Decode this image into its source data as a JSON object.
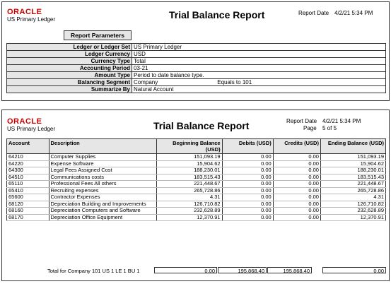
{
  "brand": "ORACLE",
  "ledger": "US Primary Ledger",
  "report_title": "Trial Balance Report",
  "page1": {
    "report_date_label": "Report Date",
    "report_date": "4/2/21 5:34 PM",
    "parameters_title": "Report Parameters",
    "parameters": [
      {
        "label": "Ledger or Ledger Set",
        "value": "US Primary Ledger",
        "extra": ""
      },
      {
        "label": "Ledger Currency",
        "value": "USD",
        "extra": ""
      },
      {
        "label": "Currency Type",
        "value": "Total",
        "extra": ""
      },
      {
        "label": "Accounting Period",
        "value": "03-21",
        "extra": ""
      },
      {
        "label": "Amount Type",
        "value": "Period to date balance type.",
        "extra": ""
      },
      {
        "label": "Balancing Segment",
        "value": "Company",
        "extra": "Equals to 101"
      },
      {
        "label": "Summarize By",
        "value": "Natural Account",
        "extra": ""
      }
    ]
  },
  "page2": {
    "report_date_label": "Report Date",
    "report_date": "4/2/21 5:34 PM",
    "page_label": "Page",
    "page_value": "5 of 5",
    "columns": {
      "account": "Account",
      "description": "Description",
      "beginning": "Beginning Balance (USD)",
      "debits": "Debits (USD)",
      "credits": "Credits (USD)",
      "ending": "Ending Balance (USD)"
    },
    "rows": [
      {
        "account": "64210",
        "description": "Computer Supplies",
        "beginning": "151,093.19",
        "debits": "0.00",
        "credits": "0.00",
        "ending": "151,093.19"
      },
      {
        "account": "64220",
        "description": "Expense Software",
        "beginning": "15,904.62",
        "debits": "0.00",
        "credits": "0.00",
        "ending": "15,904.62"
      },
      {
        "account": "64300",
        "description": "Legal Fees Assigned Cost",
        "beginning": "188,230.01",
        "debits": "0.00",
        "credits": "0.00",
        "ending": "188,230.01"
      },
      {
        "account": "64510",
        "description": "Communications costs",
        "beginning": "183,515.43",
        "debits": "0.00",
        "credits": "0.00",
        "ending": "183,515.43"
      },
      {
        "account": "65110",
        "description": "Professional Fees   All others",
        "beginning": "221,448.67",
        "debits": "0.00",
        "credits": "0.00",
        "ending": "221,448.67"
      },
      {
        "account": "65410",
        "description": "Recruiting expenses",
        "beginning": "265,728.86",
        "debits": "0.00",
        "credits": "0.00",
        "ending": "265,728.86"
      },
      {
        "account": "65600",
        "description": "Contractor Expenses",
        "beginning": "4.31",
        "debits": "0.00",
        "credits": "0.00",
        "ending": "4.31"
      },
      {
        "account": "68120",
        "description": "Depreciation Building and Improvements",
        "beginning": "126,710.82",
        "debits": "0.00",
        "credits": "0.00",
        "ending": "126,710.82"
      },
      {
        "account": "68160",
        "description": "Depreciation Computers and Software",
        "beginning": "232,628.89",
        "debits": "0.00",
        "credits": "0.00",
        "ending": "232,628.89"
      },
      {
        "account": "68170",
        "description": "Depreciation Office Equipment",
        "beginning": "12,370.91",
        "debits": "0.00",
        "credits": "0.00",
        "ending": "12,370.91"
      }
    ],
    "total": {
      "label": "Total for Company 101 US 1 LE 1 BU 1",
      "beginning": "0.00",
      "debits": "195,868.40",
      "credits": "195,868.40",
      "ending": "0.00"
    }
  }
}
